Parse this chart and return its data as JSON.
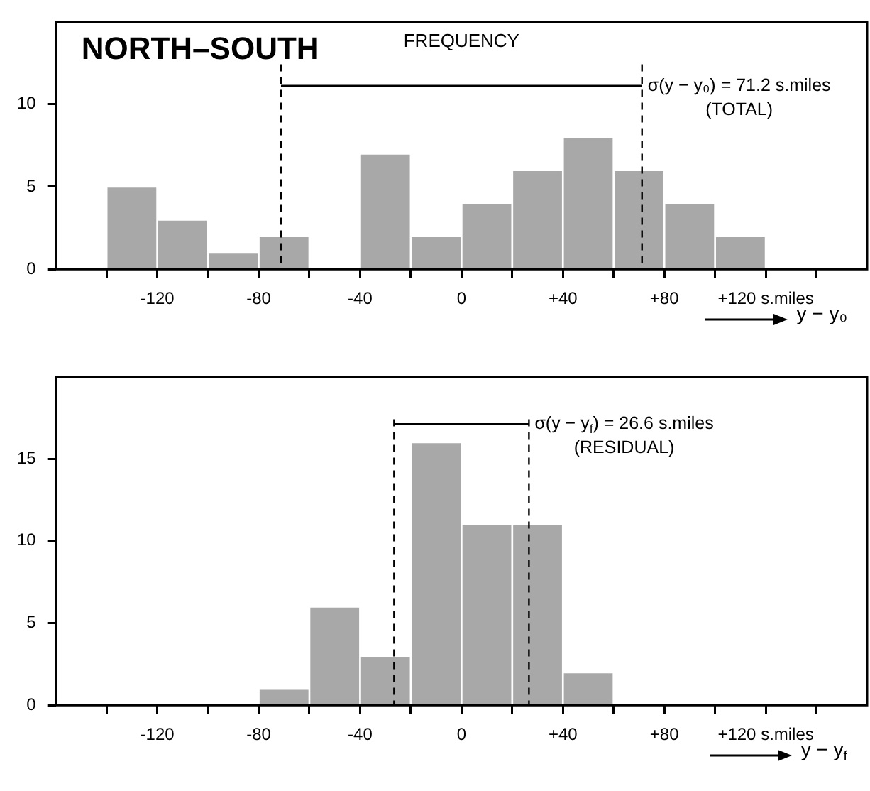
{
  "chart_data": [
    {
      "type": "histogram",
      "title": "NORTH–SOUTH",
      "ylabel": "FREQUENCY",
      "xlabel": "y − y₀",
      "color": "#a8a8a8",
      "bins": [
        -140,
        -120,
        -100,
        -80,
        -60,
        -40,
        -20,
        0,
        20,
        40,
        60,
        80,
        100,
        120
      ],
      "values": [
        5,
        3,
        1,
        2,
        0,
        7,
        2,
        4,
        6,
        8,
        6,
        4,
        2
      ],
      "xlim": [
        -160,
        160
      ],
      "xticks": [
        {
          "value": -140,
          "label": null
        },
        -120,
        {
          "value": -100,
          "label": null
        },
        -80,
        {
          "value": -60,
          "label": null
        },
        -40,
        {
          "value": -20,
          "label": null
        },
        0,
        {
          "value": 20,
          "label": null
        },
        {
          "value": 40,
          "label": "+40"
        },
        {
          "value": 60,
          "label": null
        },
        {
          "value": 80,
          "label": "+80"
        },
        {
          "value": 100,
          "label": null
        },
        {
          "value": 120,
          "label": "+120 s.miles"
        },
        {
          "value": 140,
          "label": null
        }
      ],
      "ylim": [
        0,
        15
      ],
      "yticks": [
        0,
        5,
        10
      ],
      "series": [
        {
          "type": "line",
          "x": [
            -71.2,
            71.2
          ],
          "values": [
            11.1,
            11.1
          ],
          "color": "#000000"
        }
      ],
      "ref_lines": [
        {
          "axis": "x",
          "value": -71.2,
          "line_style": "dashed"
        },
        {
          "axis": "x",
          "value": 71.2,
          "line_style": "dashed"
        }
      ],
      "annotations": [
        {
          "text": "σ(y − y₀) = 71.2 s.miles",
          "x": 71.2,
          "y": 11.1
        },
        "(TOTAL)"
      ],
      "grid": false,
      "legend": false
    },
    {
      "type": "histogram",
      "xlabel": "y − y$_{f}$",
      "color": "#a8a8a8",
      "bins": [
        -80,
        -60,
        -40,
        -20,
        0,
        20,
        40,
        60
      ],
      "values": [
        1,
        6,
        3,
        16,
        11,
        11,
        2
      ],
      "xlim": [
        -160,
        160
      ],
      "xticks": [
        {
          "value": -140,
          "label": null
        },
        -120,
        {
          "value": -100,
          "label": null
        },
        -80,
        {
          "value": -60,
          "label": null
        },
        -40,
        {
          "value": -20,
          "label": null
        },
        0,
        {
          "value": 20,
          "label": null
        },
        {
          "value": 40,
          "label": "+40"
        },
        {
          "value": 60,
          "label": null
        },
        {
          "value": 80,
          "label": "+80"
        },
        {
          "value": 100,
          "label": null
        },
        {
          "value": 120,
          "label": "+120 s.miles"
        },
        {
          "value": 140,
          "label": null
        }
      ],
      "ylim": [
        0,
        20
      ],
      "yticks": [
        0,
        5,
        10,
        15
      ],
      "series": [
        {
          "type": "line",
          "x": [
            -26.6,
            26.6
          ],
          "values": [
            17.1,
            17.1
          ],
          "color": "#000000"
        }
      ],
      "ref_lines": [
        {
          "axis": "x",
          "value": -26.6,
          "line_style": "dashed"
        },
        {
          "axis": "x",
          "value": 26.6,
          "line_style": "dashed"
        }
      ],
      "annotations": [
        {
          "text": "σ(y − y$_{f}$) = 26.6 s.miles",
          "x": 26.6,
          "y": 17.1
        },
        "(RESIDUAL)"
      ],
      "grid": false,
      "legend": false
    }
  ]
}
